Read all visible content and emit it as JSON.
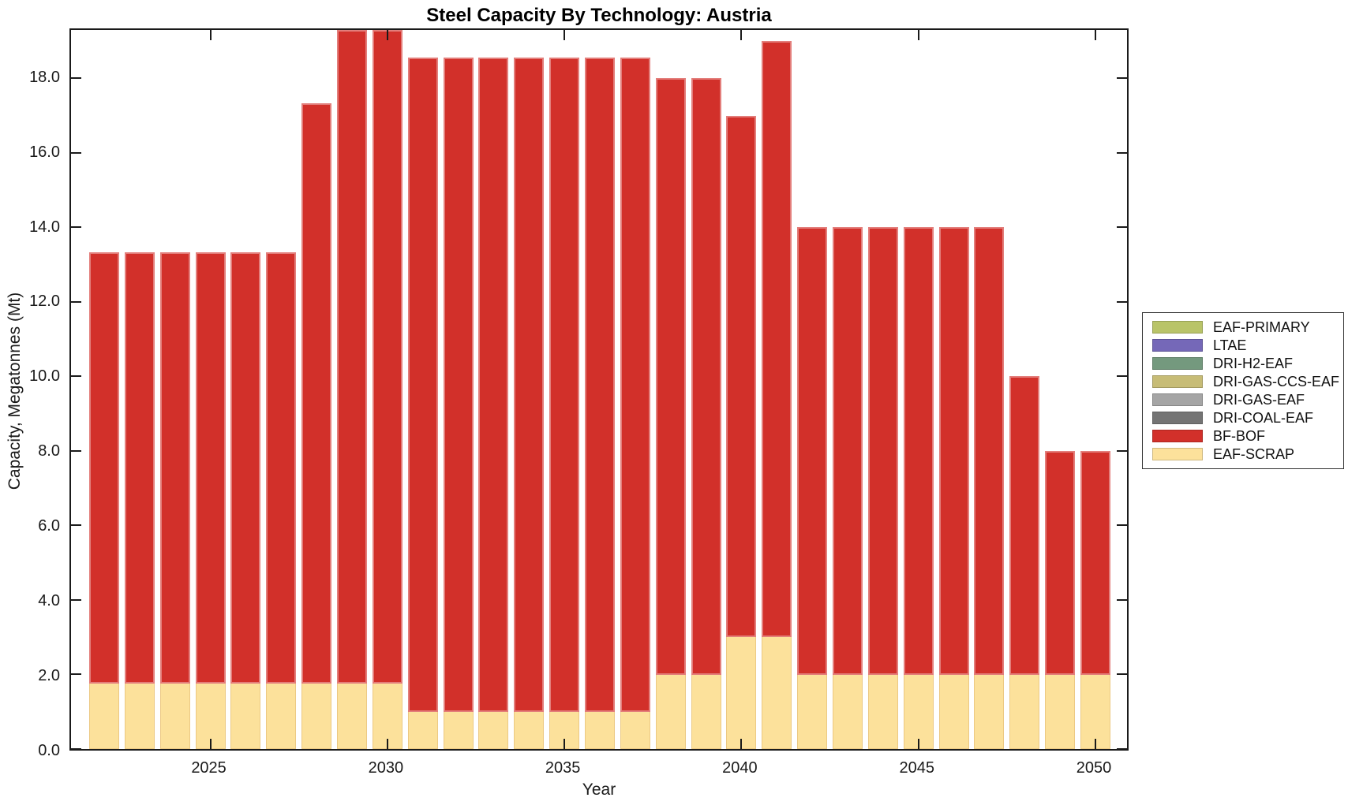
{
  "figure": {
    "title": "Steel Capacity By Technology: Austria",
    "xlabel": "Year",
    "ylabel": "Capacity, Megatonnes (Mt)"
  },
  "chart_data": {
    "type": "bar",
    "stacked": true,
    "title": "Steel Capacity By Technology: Austria",
    "xlabel": "Year",
    "ylabel": "Capacity, Megatonnes (Mt)",
    "ylim": [
      0,
      19.3
    ],
    "grid": false,
    "legend_position": "right of plot, vertically centered",
    "x": [
      2022,
      2023,
      2024,
      2025,
      2026,
      2027,
      2028,
      2029,
      2030,
      2031,
      2032,
      2033,
      2034,
      2035,
      2036,
      2037,
      2038,
      2039,
      2040,
      2041,
      2042,
      2043,
      2044,
      2045,
      2046,
      2047,
      2048,
      2049,
      2050
    ],
    "xticks": [
      2025,
      2030,
      2035,
      2040,
      2045,
      2050
    ],
    "yticks": [
      0,
      2,
      4,
      6,
      8,
      10,
      12,
      14,
      16,
      18
    ],
    "ytick_labels": [
      "0.0",
      "2.0",
      "4.0",
      "6.0",
      "8.0",
      "10.0",
      "12.0",
      "14.0",
      "16.0",
      "18.0"
    ],
    "series": [
      {
        "name": "EAF-SCRAP",
        "color": "#fce19b",
        "values": [
          1.75,
          1.75,
          1.75,
          1.75,
          1.75,
          1.75,
          1.75,
          1.75,
          1.75,
          1.0,
          1.0,
          1.0,
          1.0,
          1.0,
          1.0,
          1.0,
          2.0,
          2.0,
          3.0,
          3.0,
          2.0,
          2.0,
          2.0,
          2.0,
          2.0,
          2.0,
          2.0,
          2.0,
          2.0
        ]
      },
      {
        "name": "BF-BOF",
        "color": "#d2302a",
        "values": [
          11.58,
          11.58,
          11.58,
          11.58,
          11.58,
          11.58,
          15.58,
          17.55,
          17.55,
          17.55,
          17.55,
          17.55,
          17.55,
          17.55,
          17.55,
          17.55,
          16.0,
          16.0,
          14.0,
          16.0,
          12.0,
          12.0,
          12.0,
          12.0,
          12.0,
          12.0,
          8.0,
          6.0,
          6.0
        ]
      }
    ],
    "bar_totals": [
      13.33,
      13.33,
      13.33,
      13.33,
      13.33,
      13.33,
      17.33,
      19.3,
      19.3,
      18.55,
      18.55,
      18.55,
      18.55,
      18.55,
      18.55,
      18.55,
      18.0,
      18.0,
      17.0,
      19.0,
      14.0,
      14.0,
      14.0,
      14.0,
      14.0,
      14.0,
      10.0,
      8.0,
      8.0
    ],
    "legend": [
      {
        "label": "EAF-PRIMARY",
        "color": "#b9c468"
      },
      {
        "label": "LTAE",
        "color": "#7568b8"
      },
      {
        "label": "DRI-H2-EAF",
        "color": "#74997e"
      },
      {
        "label": "DRI-GAS-CCS-EAF",
        "color": "#c7bc76"
      },
      {
        "label": "DRI-GAS-EAF",
        "color": "#a5a5a5"
      },
      {
        "label": "DRI-COAL-EAF",
        "color": "#747474"
      },
      {
        "label": "BF-BOF",
        "color": "#d2302a"
      },
      {
        "label": "EAF-SCRAP",
        "color": "#fce19b"
      }
    ]
  }
}
